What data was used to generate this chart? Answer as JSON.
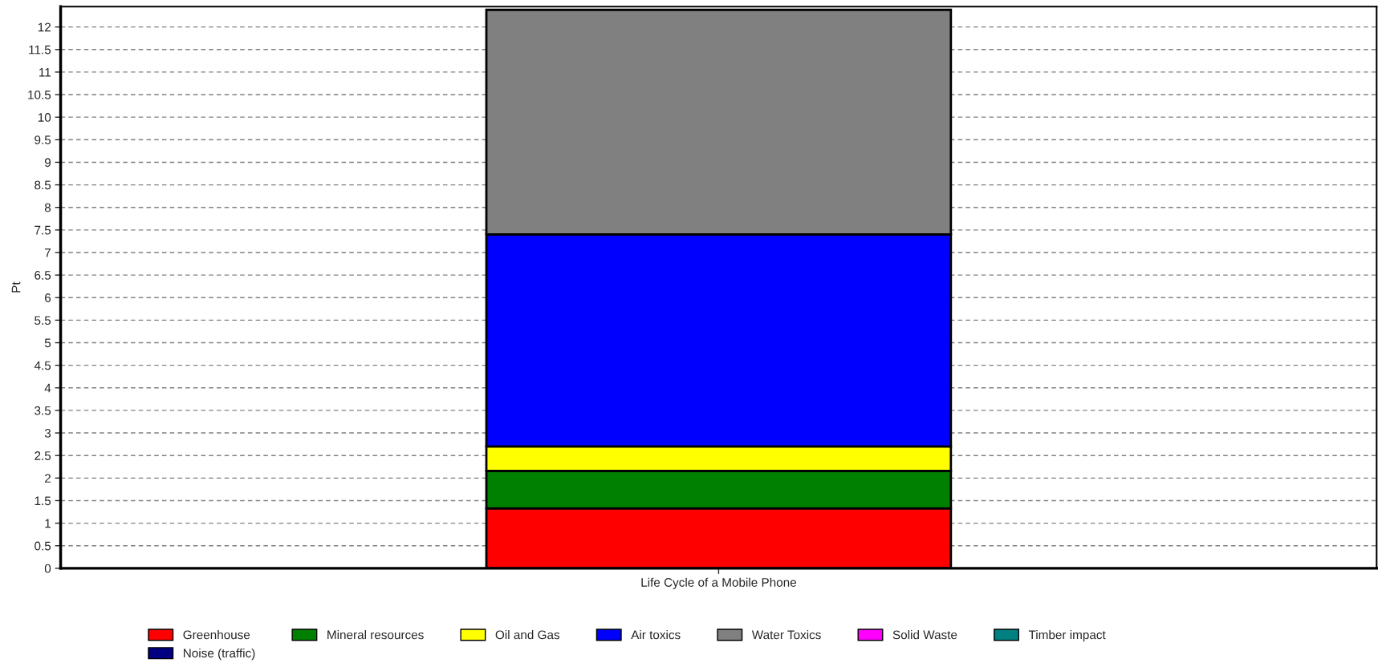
{
  "chart_data": {
    "type": "bar",
    "stacked": true,
    "ylabel": "Pt",
    "categories": [
      "Life Cycle of a Mobile Phone"
    ],
    "series": [
      {
        "name": "Greenhouse",
        "color": "#ff0000",
        "values": [
          1.33
        ]
      },
      {
        "name": "Mineral resources",
        "color": "#008000",
        "values": [
          0.83
        ]
      },
      {
        "name": "Oil and Gas",
        "color": "#ffff00",
        "values": [
          0.54
        ]
      },
      {
        "name": "Air toxics",
        "color": "#0000ff",
        "values": [
          4.7
        ]
      },
      {
        "name": "Water Toxics",
        "color": "#808080",
        "values": [
          4.98
        ]
      },
      {
        "name": "Solid Waste",
        "color": "#ff00ff",
        "values": [
          0
        ]
      },
      {
        "name": "Timber impact",
        "color": "#008080",
        "values": [
          0
        ]
      },
      {
        "name": "Noise (traffic)",
        "color": "#000080",
        "values": [
          0
        ]
      }
    ],
    "ylim": [
      0,
      12.45
    ],
    "yticks": [
      0,
      0.5,
      1,
      1.5,
      2,
      2.5,
      3,
      3.5,
      4,
      4.5,
      5,
      5.5,
      6,
      6.5,
      7,
      7.5,
      8,
      8.5,
      9,
      9.5,
      10,
      10.5,
      11,
      11.5,
      12
    ],
    "grid": "y",
    "legend": "bottom"
  }
}
